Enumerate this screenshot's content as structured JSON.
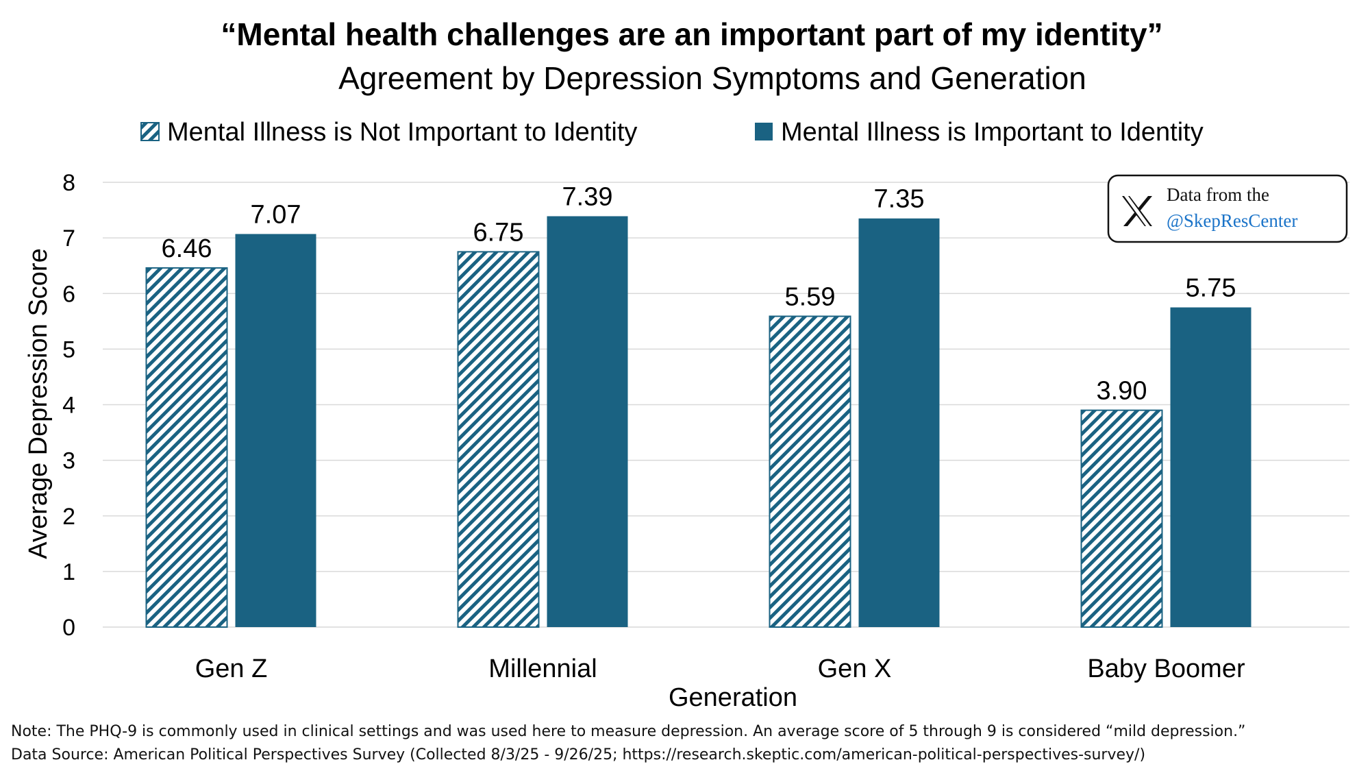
{
  "header": {
    "title": "“Mental health challenges are an important part of my identity”",
    "subtitle": "Agreement by Depression Symptoms and Generation"
  },
  "badge": {
    "line1": "Data from the",
    "line2": "@SkepResCenter",
    "icon": "x-logo-icon",
    "link_color": "#1a73c8"
  },
  "notes": {
    "note": "Note: The PHQ-9 is commonly used in clinical settings and was used here to measure depression. An average score of 5 through 9 is considered “mild depression.”",
    "source": "Data Source: American Political Perspectives Survey (Collected 8/3/25 - 9/26/25; https://research.skeptic.com/american-political-perspectives-survey/)"
  },
  "colors": {
    "accent": "#1a6282",
    "hatch": "#1a6282",
    "grid": "#d9d9d9"
  },
  "chart_data": {
    "type": "bar",
    "xlabel": "Generation",
    "ylabel": "Average Depression Score",
    "ylim": [
      0,
      8
    ],
    "yticks": [
      0,
      1,
      2,
      3,
      4,
      5,
      6,
      7,
      8
    ],
    "grid": true,
    "legend_position": "top",
    "categories": [
      "Gen Z",
      "Millennial",
      "Gen X",
      "Baby Boomer"
    ],
    "series": [
      {
        "name": "Mental Illness is Not Important to Identity",
        "pattern": "hatched",
        "values": [
          6.46,
          6.75,
          5.59,
          3.9
        ],
        "labels": [
          "6.46",
          "6.75",
          "5.59",
          "3.90"
        ]
      },
      {
        "name": "Mental Illness is Important to Identity",
        "pattern": "solid",
        "values": [
          7.07,
          7.39,
          7.35,
          5.75
        ],
        "labels": [
          "7.07",
          "7.39",
          "7.35",
          "5.75"
        ]
      }
    ]
  }
}
